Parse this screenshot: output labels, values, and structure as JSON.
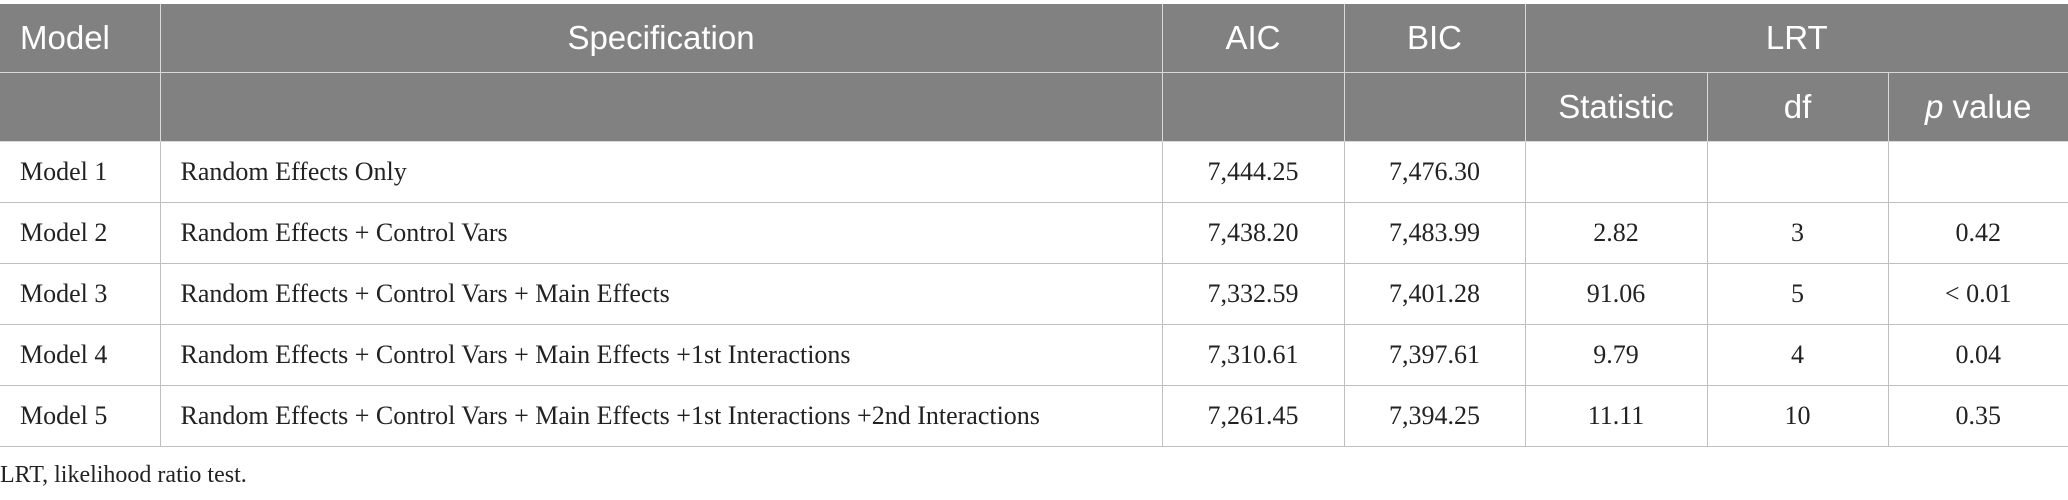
{
  "header": {
    "model": "Model",
    "specification": "Specification",
    "aic": "AIC",
    "bic": "BIC",
    "lrt": "LRT",
    "statistic": "Statistic",
    "df": "df",
    "p_value_p": "p",
    "p_value_rest": " value"
  },
  "rows": [
    {
      "model": "Model 1",
      "spec": "Random Effects Only",
      "aic": "7,444.25",
      "bic": "7,476.30",
      "stat": "",
      "df": "",
      "p": ""
    },
    {
      "model": "Model 2",
      "spec": "Random Effects + Control Vars",
      "aic": "7,438.20",
      "bic": "7,483.99",
      "stat": "2.82",
      "df": "3",
      "p": "0.42"
    },
    {
      "model": "Model 3",
      "spec": "Random Effects + Control Vars + Main Effects",
      "aic": "7,332.59",
      "bic": "7,401.28",
      "stat": "91.06",
      "df": "5",
      "p": "< 0.01"
    },
    {
      "model": "Model 4",
      "spec": "Random Effects + Control Vars + Main Effects +1st Interactions",
      "aic": "7,310.61",
      "bic": "7,397.61",
      "stat": "9.79",
      "df": "4",
      "p": "0.04"
    },
    {
      "model": "Model 5",
      "spec": "Random Effects + Control Vars + Main Effects +1st Interactions +2nd Interactions",
      "aic": "7,261.45",
      "bic": "7,394.25",
      "stat": "11.11",
      "df": "10",
      "p": "0.35"
    }
  ],
  "footnote": "LRT, likelihood ratio test."
}
